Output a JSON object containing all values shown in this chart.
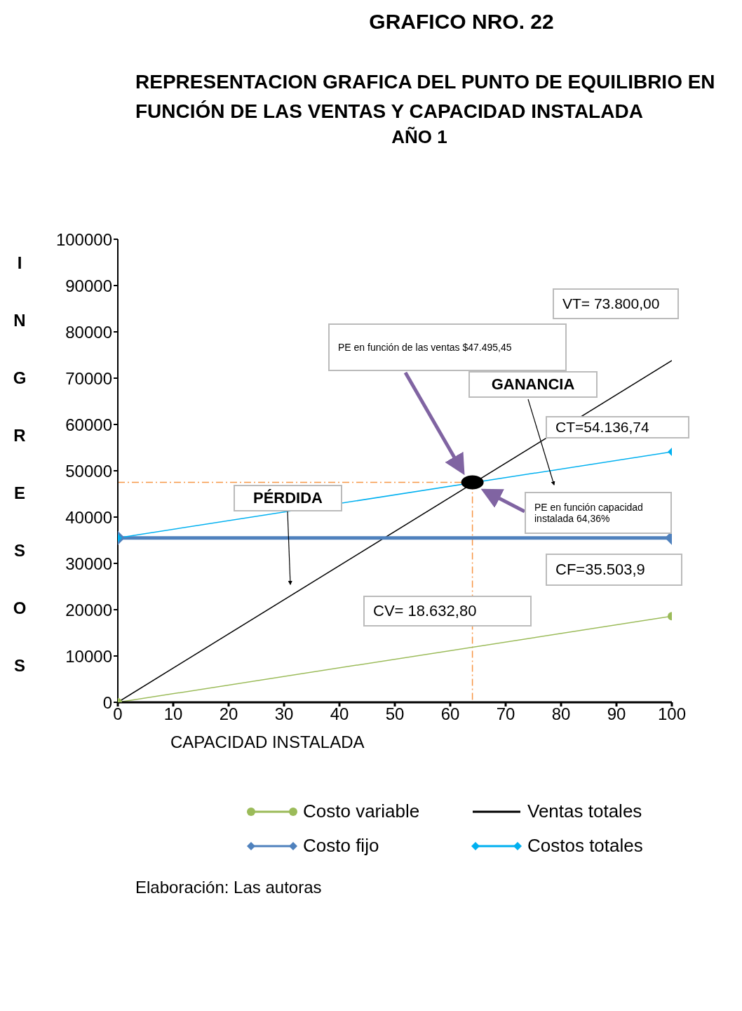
{
  "chart_data": {
    "type": "line",
    "title": "GRAFICO NRO. 22",
    "subtitle": "REPRESENTACION GRAFICA DEL PUNTO DE EQUILIBRIO EN FUNCIÓN DE LAS VENTAS Y  CAPACIDAD INSTALADA",
    "xlabel": "CAPACIDAD INSTALADA",
    "ylabel": "INGRESOS",
    "x": [
      0,
      100
    ],
    "series": [
      {
        "name": "Costo variable",
        "color": "#9bbb59",
        "values": [
          0,
          18600
        ],
        "marker": "circle"
      },
      {
        "name": "Ventas totales",
        "color": "#000000",
        "values": [
          0,
          73800
        ],
        "marker": "none"
      },
      {
        "name": "Costo fijo",
        "color": "#4f81bd",
        "values": [
          35500,
          35500
        ],
        "marker": "diamond"
      },
      {
        "name": "Costos totales",
        "color": "#00b0f0",
        "values": [
          35500,
          54100
        ],
        "marker": "diamond"
      },
      {
        "type": "scatter",
        "color": "#000000",
        "x": [
          64
        ],
        "values": [
          47500
        ],
        "marker": "circle"
      }
    ],
    "xlim": [
      0,
      100
    ],
    "xticks": [
      0,
      10,
      20,
      30,
      40,
      50,
      60,
      70,
      80,
      90,
      100
    ],
    "ylim": [
      0,
      100000
    ],
    "yticks": [
      0,
      10000,
      20000,
      30000,
      40000,
      50000,
      60000,
      70000,
      80000,
      90000,
      100000
    ],
    "ref_lines": [
      {
        "axis": "y",
        "value": 47500,
        "color": "#f79646",
        "line_style": "dashed"
      },
      {
        "axis": "x",
        "value": 64,
        "color": "#f79646",
        "line_style": "dashed"
      }
    ],
    "annotations": [
      "AÑO 1",
      "VT= 73.800,00",
      "PE en función de las ventas  $47.495,45",
      "GANANCIA",
      "CT=54.136,74",
      "PÉRDIDA",
      "PE  en función  capacidad instalada 64,36%",
      "CF=35.503,9",
      "CV= 18.632,80",
      "Elaboración: Las autoras"
    ],
    "legend": "bottom"
  }
}
